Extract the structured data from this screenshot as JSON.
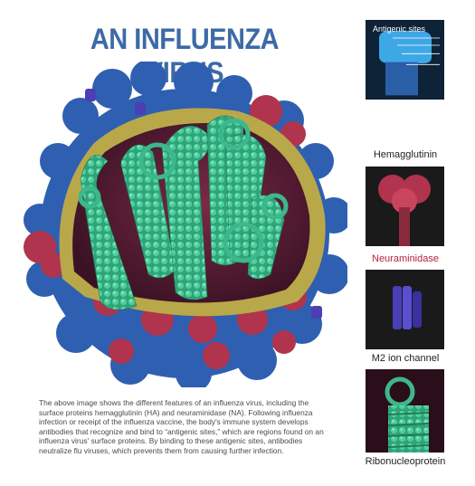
{
  "title": "AN INFLUENZA VIRUS",
  "description": "The above image shows the different features of an influenza virus, including the surface proteins hemagglutinin (HA) and neuraminidase (NA). Following influenza infection or receipt of the influenza vaccine, the body's immune system develops antibodies that recognize and bind to “antigenic sites,” which are regions found on an influenza virus' surface proteins. By binding to these antigenic sites, antibodies neutralize flu viruses, which prevents them from causing further infection.",
  "panels": {
    "antigenic_label": "Antigenic sites",
    "hemagglutinin": "Hemagglutinin",
    "neuraminidase": "Neuraminidase",
    "m2": "M2 ion channel",
    "ribonucleoprotein": "Ribonucleoprotein"
  },
  "colors": {
    "title": "#3d6aa6",
    "hemagglutinin": "#2f5fb0",
    "neuraminidase": "#b0344d",
    "m2": "#4a3fb5",
    "rnp": "#3db88c",
    "envelope": "#b9a84a",
    "interior": "#5a1f38"
  }
}
